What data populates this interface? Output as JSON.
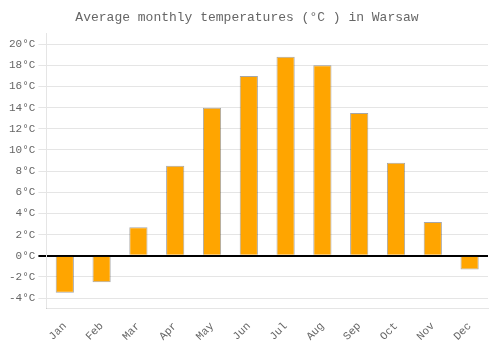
{
  "chart_data": {
    "type": "bar",
    "title": "Average monthly temperatures (°C ) in Warsaw",
    "categories": [
      "Jan",
      "Feb",
      "Mar",
      "Apr",
      "May",
      "Jun",
      "Jul",
      "Aug",
      "Sep",
      "Oct",
      "Nov",
      "Dec"
    ],
    "values": [
      -3.5,
      -2.5,
      2.7,
      8.5,
      14.0,
      17.0,
      18.8,
      18.0,
      13.5,
      8.8,
      3.2,
      -1.3
    ],
    "color": "#FFA500",
    "ylim": [
      -5,
      21
    ],
    "yticks": [
      {
        "value": -4,
        "label": "-4°C"
      },
      {
        "value": -2,
        "label": "-2°C"
      },
      {
        "value": 0,
        "label": "0°C"
      },
      {
        "value": 2,
        "label": "2°C"
      },
      {
        "value": 4,
        "label": "4°C"
      },
      {
        "value": 6,
        "label": "6°C"
      },
      {
        "value": 8,
        "label": "8°C"
      },
      {
        "value": 10,
        "label": "10°C"
      },
      {
        "value": 12,
        "label": "12°C"
      },
      {
        "value": 14,
        "label": "14°C"
      },
      {
        "value": 16,
        "label": "16°C"
      },
      {
        "value": 18,
        "label": "18°C"
      },
      {
        "value": 20,
        "label": "20°C"
      }
    ],
    "grid": true
  }
}
